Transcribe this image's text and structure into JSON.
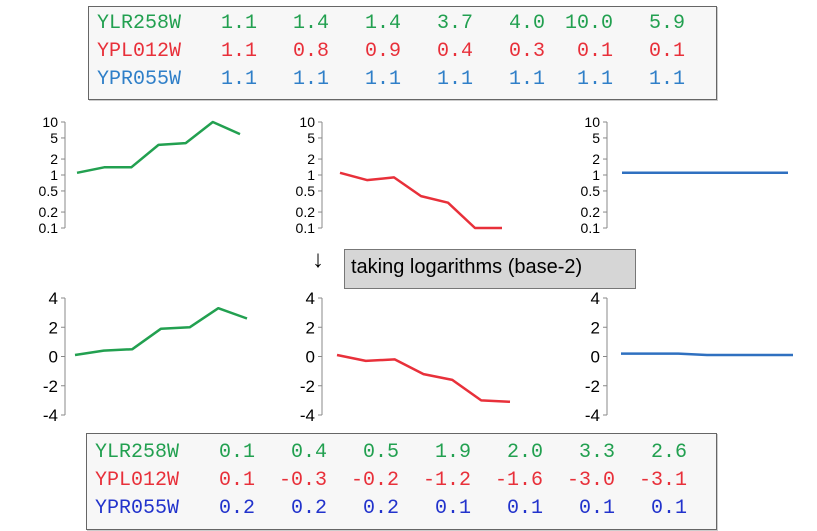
{
  "colors": {
    "green": "#22a050",
    "red": "#e8303a",
    "blue": "#2f70c0"
  },
  "raw_table": [
    {
      "gene": "YLR258W",
      "values": [
        "1.1",
        "1.4",
        "1.4",
        "3.7",
        "4.0",
        "10.0",
        "5.9"
      ]
    },
    {
      "gene": "YPL012W",
      "values": [
        "1.1",
        "0.8",
        "0.9",
        "0.4",
        "0.3",
        "0.1",
        "0.1"
      ]
    },
    {
      "gene": "YPR055W",
      "values": [
        "1.1",
        "1.1",
        "1.1",
        "1.1",
        "1.1",
        "1.1",
        "1.1"
      ]
    }
  ],
  "log_table": [
    {
      "gene": "YLR258W",
      "values": [
        "0.1",
        "0.4",
        "0.5",
        "1.9",
        "2.0",
        "3.3",
        "2.6"
      ]
    },
    {
      "gene": "YPL012W",
      "values": [
        "0.1",
        "-0.3",
        "-0.2",
        "-1.2",
        "-1.6",
        "-3.0",
        "-3.1"
      ]
    },
    {
      "gene": "YPR055W",
      "values": [
        "0.2",
        "0.2",
        "0.2",
        "0.1",
        "0.1",
        "0.1",
        "0.1"
      ]
    }
  ],
  "callout": {
    "text": "taking logarithms (base-2)",
    "arrow": "↓"
  },
  "chart_data": [
    {
      "type": "line",
      "scale": "log",
      "yticks": [
        "10",
        "5",
        "2",
        "1",
        "0.5",
        "0.2",
        "0.1"
      ],
      "series": [
        {
          "values": [
            1.1,
            1.4,
            1.4,
            3.7,
            4.0,
            10.0,
            5.9
          ],
          "color": "green"
        }
      ]
    },
    {
      "type": "line",
      "scale": "log",
      "yticks": [
        "10",
        "5",
        "2",
        "1",
        "0.5",
        "0.2",
        "0.1"
      ],
      "series": [
        {
          "values": [
            1.1,
            0.8,
            0.9,
            0.4,
            0.3,
            0.1,
            0.1
          ],
          "color": "red"
        }
      ]
    },
    {
      "type": "line",
      "scale": "log",
      "yticks": [
        "10",
        "5",
        "2",
        "1",
        "0.5",
        "0.2",
        "0.1"
      ],
      "series": [
        {
          "values": [
            1.1,
            1.1,
            1.1,
            1.1,
            1.1,
            1.1,
            1.1
          ],
          "color": "blue"
        }
      ]
    },
    {
      "type": "line",
      "scale": "linear",
      "yticks": [
        "4",
        "2",
        "0",
        "-2",
        "-4"
      ],
      "series": [
        {
          "values": [
            0.1,
            0.4,
            0.5,
            1.9,
            2.0,
            3.3,
            2.6
          ],
          "color": "green"
        }
      ]
    },
    {
      "type": "line",
      "scale": "linear",
      "yticks": [
        "4",
        "2",
        "0",
        "-2",
        "-4"
      ],
      "series": [
        {
          "values": [
            0.1,
            -0.3,
            -0.2,
            -1.2,
            -1.6,
            -3.0,
            -3.1
          ],
          "color": "red"
        }
      ]
    },
    {
      "type": "line",
      "scale": "linear",
      "yticks": [
        "4",
        "2",
        "0",
        "-2",
        "-4"
      ],
      "series": [
        {
          "values": [
            0.2,
            0.2,
            0.2,
            0.1,
            0.1,
            0.1,
            0.1
          ],
          "color": "blue"
        }
      ]
    }
  ]
}
